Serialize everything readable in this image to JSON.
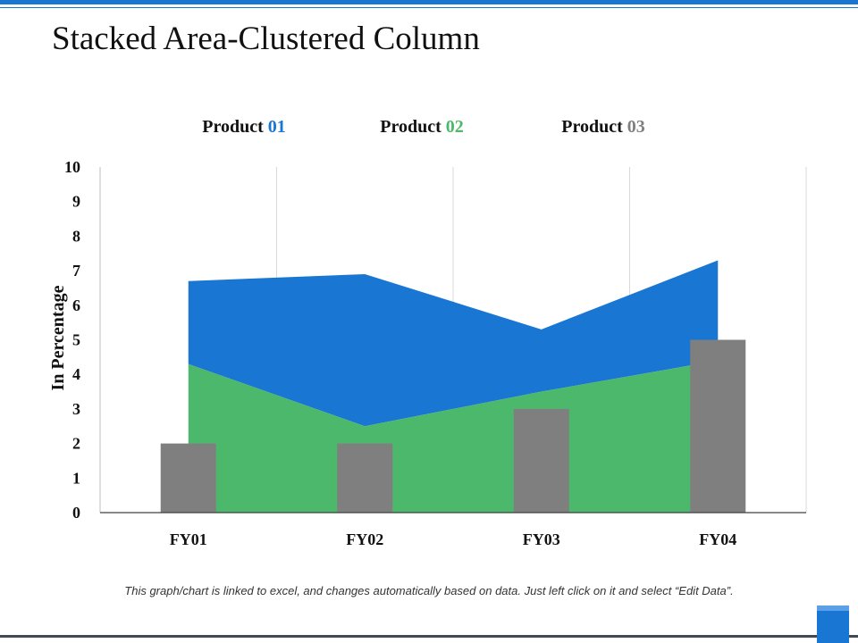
{
  "slide": {
    "title": "Stacked Area-Clustered Column",
    "footnote": "This graph/chart is linked to excel, and changes automatically based on data. Just left click on it and select “Edit Data”."
  },
  "chart_data": {
    "type": "area+bar",
    "title": "",
    "xlabel": "",
    "ylabel": "In Percentage",
    "ylim": [
      0,
      10
    ],
    "yticks": [
      0,
      1,
      2,
      3,
      4,
      5,
      6,
      7,
      8,
      9,
      10
    ],
    "categories": [
      "FY01",
      "FY02",
      "FY03",
      "FY04"
    ],
    "grid": "vertical",
    "legend_position": "top",
    "series": [
      {
        "name": "Product 01",
        "legend_prefix": "Product ",
        "legend_number": "01",
        "kind": "stacked-area",
        "color": "#1976d2",
        "values": [
          2.4,
          4.4,
          1.8,
          2.9
        ]
      },
      {
        "name": "Product 02",
        "legend_prefix": "Product ",
        "legend_number": "02",
        "kind": "stacked-area",
        "color": "#4cb86b",
        "values": [
          4.3,
          2.5,
          3.5,
          4.4
        ]
      },
      {
        "name": "Product 03",
        "legend_prefix": "Product ",
        "legend_number": "03",
        "kind": "bar",
        "color": "#7f7f7f",
        "values": [
          2,
          2,
          3,
          5
        ]
      }
    ]
  }
}
